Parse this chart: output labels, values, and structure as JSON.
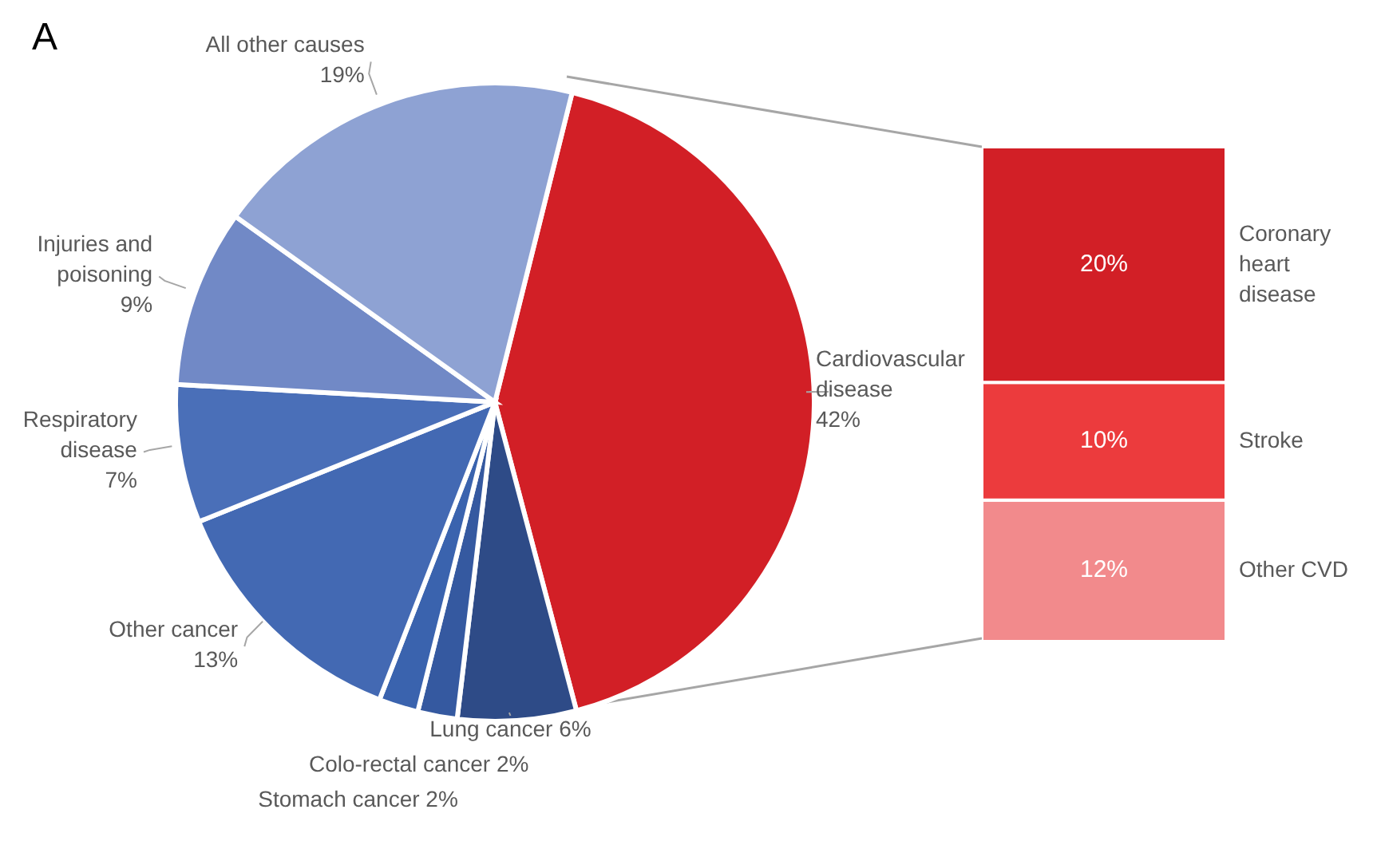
{
  "chart_data": [
    {
      "type": "pie",
      "title": "A",
      "categories": [
        "Cardiovascular disease",
        "Lung cancer",
        "Colo-rectal cancer",
        "Stomach cancer",
        "Other cancer",
        "Respiratory disease",
        "Injuries and poisoning",
        "All other causes"
      ],
      "values": [
        42,
        6,
        2,
        2,
        13,
        7,
        9,
        19
      ],
      "value_labels": [
        "42%",
        "6%",
        "2%",
        "2%",
        "13%",
        "7%",
        "9%",
        "19%"
      ],
      "colors": [
        "#d21f26",
        "#2e4b87",
        "#3559a0",
        "#3a63ae",
        "#4369b3",
        "#4a6fb8",
        "#7189c6",
        "#8ea2d3"
      ],
      "legend": false
    },
    {
      "type": "bar",
      "stacked": true,
      "categories": [
        null
      ],
      "tick_labels": false,
      "legend": false,
      "series": [
        {
          "name": "Other CVD",
          "color": "#f28a8c",
          "values": [
            12
          ],
          "value_labels": [
            "12%"
          ]
        },
        {
          "name": "Stroke",
          "color": "#ec3b3d",
          "values": [
            10
          ],
          "value_labels": [
            "10%"
          ]
        },
        {
          "name": "Coronary heart disease",
          "color": "#d21f26",
          "values": [
            20
          ],
          "value_labels": [
            "20%"
          ]
        }
      ]
    }
  ]
}
